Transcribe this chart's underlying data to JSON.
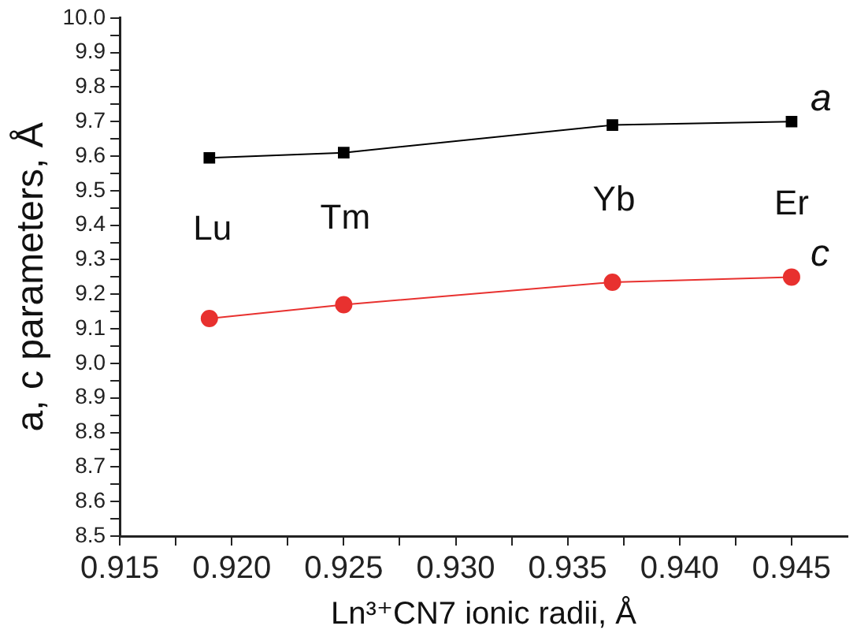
{
  "chart_data": {
    "type": "line",
    "xlabel": "Ln³⁺CN7 ionic radii, Å",
    "ylabel": "a, c parameters, Å",
    "x": [
      0.919,
      0.925,
      0.937,
      0.945
    ],
    "series": [
      {
        "name": "a",
        "color": "#000000",
        "marker": "square",
        "values": [
          9.595,
          9.61,
          9.69,
          9.7
        ]
      },
      {
        "name": "c",
        "color": "#e8312f",
        "marker": "circle",
        "values": [
          9.13,
          9.17,
          9.235,
          9.25
        ]
      }
    ],
    "annotations": [
      "Lu",
      "Tm",
      "Yb",
      "Er"
    ],
    "xlim": [
      0.915,
      0.9475
    ],
    "xticks": [
      0.915,
      {
        "value": 0.9175,
        "label": null
      },
      {
        "value": 0.92,
        "label": "0.920"
      },
      {
        "value": 0.9225,
        "label": null
      },
      0.925,
      {
        "value": 0.9275,
        "label": null
      },
      {
        "value": 0.93,
        "label": "0.930"
      },
      {
        "value": 0.9325,
        "label": null
      },
      0.935,
      {
        "value": 0.9375,
        "label": null
      },
      {
        "value": 0.94,
        "label": "0.940"
      },
      {
        "value": 0.9425,
        "label": null
      },
      0.945
    ],
    "ylim": [
      8.5,
      10.0
    ],
    "yticks": [
      8.5,
      {
        "value": 8.55,
        "label": null
      },
      8.6,
      {
        "value": 8.65,
        "label": null
      },
      8.7,
      {
        "value": 8.75,
        "label": null
      },
      8.8,
      {
        "value": 8.85,
        "label": null
      },
      8.9,
      {
        "value": 8.95,
        "label": null
      },
      {
        "value": 9.0,
        "label": "9.0"
      },
      {
        "value": 9.05,
        "label": null
      },
      9.1,
      {
        "value": 9.15,
        "label": null
      },
      9.2,
      {
        "value": 9.25,
        "label": null
      },
      9.3,
      {
        "value": 9.35,
        "label": null
      },
      9.4,
      {
        "value": 9.45,
        "label": null
      },
      9.5,
      {
        "value": 9.55,
        "label": null
      },
      9.6,
      {
        "value": 9.65,
        "label": null
      },
      9.7,
      {
        "value": 9.75,
        "label": null
      },
      9.8,
      {
        "value": 9.85,
        "label": null
      },
      9.9,
      {
        "value": 9.95,
        "label": null
      },
      {
        "value": 10.0,
        "label": "10.0"
      }
    ],
    "grid": false,
    "legend": "right"
  }
}
